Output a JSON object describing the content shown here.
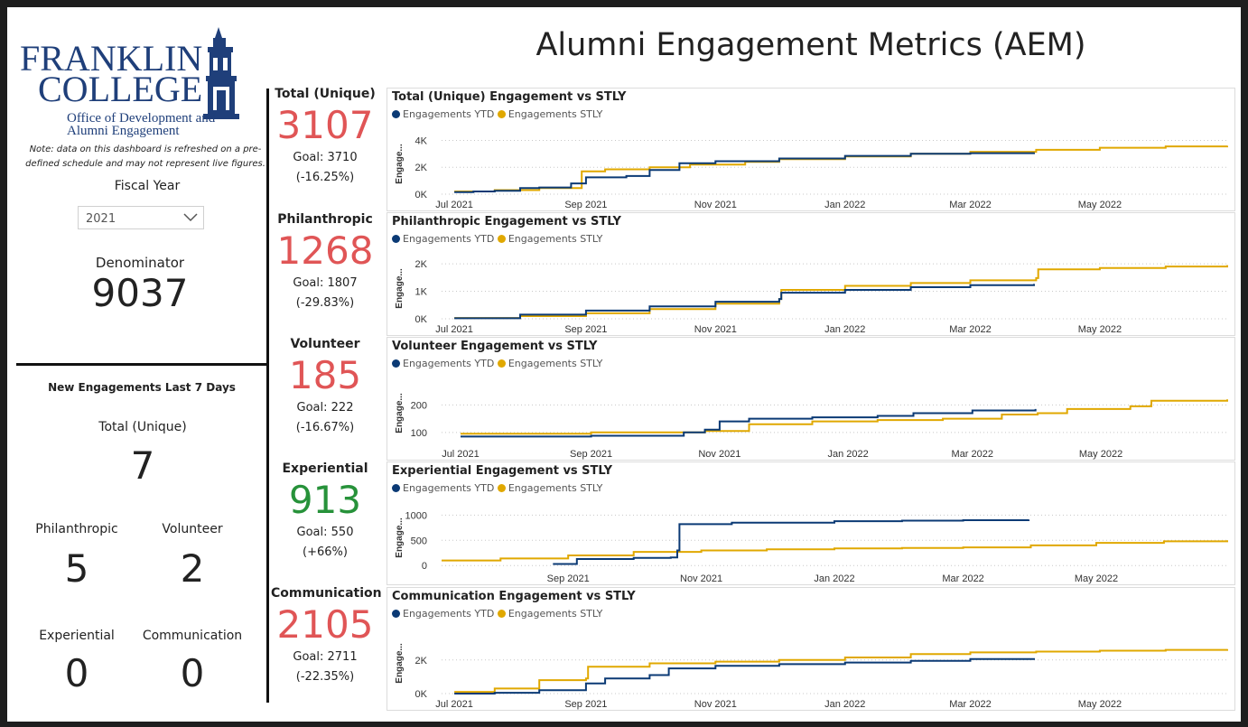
{
  "logo": {
    "line1": "FRANKLIN",
    "line2": "COLLEGE",
    "sub1": "Office of Development and",
    "sub2": "Alumni Engagement"
  },
  "note": "Note: data on this dashboard is refreshed on a pre-defined schedule and may not represent live figures.",
  "fiscal_year": {
    "label": "Fiscal Year",
    "value": "2021"
  },
  "denominator": {
    "label": "Denominator",
    "value": "9037"
  },
  "new_engagements": {
    "title": "New Engagements Last 7 Days",
    "total_label": "Total (Unique)",
    "total_value": "7",
    "philanthropic_label": "Philanthropic",
    "philanthropic_value": "5",
    "volunteer_label": "Volunteer",
    "volunteer_value": "2",
    "experiential_label": "Experiential",
    "experiential_value": "0",
    "communication_label": "Communication",
    "communication_value": "0"
  },
  "title": "Alumni Engagement Metrics (AEM)",
  "colors": {
    "ytd": "#0b3a75",
    "stly": "#e0a800",
    "below_goal": "#e05556",
    "above_goal": "#27923a"
  },
  "kpis": [
    {
      "label": "Total (Unique)",
      "value": "3107",
      "goal": "Goal: 3710",
      "delta": "(-16.25%)",
      "status": "below"
    },
    {
      "label": "Philanthropic",
      "value": "1268",
      "goal": "Goal: 1807",
      "delta": "(-29.83%)",
      "status": "below"
    },
    {
      "label": "Volunteer",
      "value": "185",
      "goal": "Goal: 222",
      "delta": "(-16.67%)",
      "status": "below"
    },
    {
      "label": "Experiential",
      "value": "913",
      "goal": "Goal: 550",
      "delta": "(+66%)",
      "status": "above"
    },
    {
      "label": "Communication",
      "value": "2105",
      "goal": "Goal: 2711",
      "delta": "(-22.35%)",
      "status": "below"
    }
  ],
  "chart_data": [
    {
      "type": "line",
      "title": "Total (Unique) Engagement vs STLY",
      "ylabel": "Engage...",
      "ylim": [
        0,
        4500
      ],
      "yticks": [
        0,
        2000,
        4000
      ],
      "ytick_labels": [
        "0K",
        "2K",
        "4K"
      ],
      "xlim": [
        "2021-06-25",
        "2022-06-30"
      ],
      "xticks": [
        "2021-07-01",
        "2021-09-01",
        "2021-11-01",
        "2022-01-01",
        "2022-03-01",
        "2022-05-01"
      ],
      "xtick_labels": [
        "Jul 2021",
        "Sep 2021",
        "Nov 2021",
        "Jan 2022",
        "Mar 2022",
        "May 2022"
      ],
      "grid": true,
      "legend": "top-left",
      "series": [
        {
          "name": "Engagements YTD",
          "color": "#0b3a75",
          "x": [
            "2021-07-01",
            "2021-07-10",
            "2021-07-20",
            "2021-08-01",
            "2021-08-10",
            "2021-08-25",
            "2021-09-01",
            "2021-09-20",
            "2021-10-01",
            "2021-10-15",
            "2021-11-01",
            "2021-12-01",
            "2022-01-01",
            "2022-02-01",
            "2022-03-01",
            "2022-03-31"
          ],
          "values": [
            150,
            200,
            250,
            450,
            500,
            800,
            1250,
            1350,
            1800,
            2300,
            2450,
            2650,
            2850,
            3000,
            3050,
            3107
          ]
        },
        {
          "name": "Engagements STLY",
          "color": "#e0a800",
          "x": [
            "2021-07-01",
            "2021-07-20",
            "2021-08-10",
            "2021-08-30",
            "2021-09-10",
            "2021-10-01",
            "2021-10-20",
            "2021-11-15",
            "2021-12-01",
            "2022-01-01",
            "2022-02-01",
            "2022-03-01",
            "2022-04-01",
            "2022-05-01",
            "2022-06-01",
            "2022-06-30"
          ],
          "values": [
            200,
            300,
            450,
            1700,
            1850,
            2000,
            2200,
            2400,
            2600,
            2800,
            3000,
            3150,
            3300,
            3450,
            3550,
            3600
          ]
        }
      ]
    },
    {
      "type": "line",
      "title": "Philanthropic Engagement vs STLY",
      "ylabel": "Engage...",
      "ylim": [
        0,
        2200
      ],
      "yticks": [
        0,
        1000,
        2000
      ],
      "ytick_labels": [
        "0K",
        "1K",
        "2K"
      ],
      "xlim": [
        "2021-06-25",
        "2022-06-30"
      ],
      "xticks": [
        "2021-07-01",
        "2021-09-01",
        "2021-11-01",
        "2022-01-01",
        "2022-03-01",
        "2022-05-01"
      ],
      "xtick_labels": [
        "Jul 2021",
        "Sep 2021",
        "Nov 2021",
        "Jan 2022",
        "Mar 2022",
        "May 2022"
      ],
      "grid": true,
      "legend": "top-left",
      "series": [
        {
          "name": "Engagements YTD",
          "color": "#0b3a75",
          "x": [
            "2021-07-01",
            "2021-08-01",
            "2021-09-01",
            "2021-10-01",
            "2021-11-01",
            "2021-12-01",
            "2021-12-02",
            "2022-01-01",
            "2022-02-01",
            "2022-03-01",
            "2022-03-31"
          ],
          "values": [
            20,
            150,
            300,
            450,
            620,
            720,
            950,
            1050,
            1150,
            1220,
            1268
          ]
        },
        {
          "name": "Engagements STLY",
          "color": "#e0a800",
          "x": [
            "2021-07-01",
            "2021-08-01",
            "2021-09-01",
            "2021-10-01",
            "2021-11-01",
            "2021-12-01",
            "2021-12-02",
            "2022-01-01",
            "2022-02-01",
            "2022-03-01",
            "2022-04-01",
            "2022-04-02",
            "2022-05-01",
            "2022-06-01",
            "2022-06-30"
          ],
          "values": [
            30,
            100,
            200,
            350,
            550,
            720,
            1050,
            1200,
            1300,
            1400,
            1480,
            1800,
            1850,
            1900,
            1950
          ]
        }
      ]
    },
    {
      "type": "line",
      "title": "Volunteer Engagement vs STLY",
      "ylabel": "Engage...",
      "ylim": [
        60,
        280
      ],
      "yticks": [
        100,
        200
      ],
      "ytick_labels": [
        "100",
        "200"
      ],
      "xlim": [
        "2021-06-22",
        "2022-06-30"
      ],
      "xticks": [
        "2021-07-01",
        "2021-09-01",
        "2021-11-01",
        "2022-01-01",
        "2022-03-01",
        "2022-05-01"
      ],
      "xtick_labels": [
        "Jul 2021",
        "Sep 2021",
        "Nov 2021",
        "Jan 2022",
        "Mar 2022",
        "May 2022"
      ],
      "grid": true,
      "legend": "top-left",
      "series": [
        {
          "name": "Engagements YTD",
          "color": "#0b3a75",
          "x": [
            "2021-07-01",
            "2021-09-01",
            "2021-10-15",
            "2021-10-25",
            "2021-11-01",
            "2021-11-15",
            "2021-12-15",
            "2022-01-15",
            "2022-02-01",
            "2022-03-01",
            "2022-03-31"
          ],
          "values": [
            85,
            88,
            100,
            110,
            140,
            150,
            155,
            160,
            170,
            180,
            185
          ]
        },
        {
          "name": "Engagements STLY",
          "color": "#e0a800",
          "x": [
            "2021-07-01",
            "2021-09-01",
            "2021-10-25",
            "2021-11-15",
            "2021-12-15",
            "2022-01-15",
            "2022-02-15",
            "2022-03-15",
            "2022-04-01",
            "2022-04-15",
            "2022-05-15",
            "2022-05-25",
            "2022-06-30"
          ],
          "values": [
            95,
            100,
            105,
            130,
            140,
            145,
            150,
            165,
            170,
            185,
            195,
            215,
            220
          ]
        }
      ]
    },
    {
      "type": "line",
      "title": "Experiential Engagement vs STLY",
      "ylabel": "Engage...",
      "ylim": [
        -50,
        1150
      ],
      "yticks": [
        0,
        500,
        1000
      ],
      "ytick_labels": [
        "0",
        "500",
        "1000"
      ],
      "xlim": [
        "2021-07-05",
        "2022-06-30"
      ],
      "xticks": [
        "2021-09-01",
        "2021-11-01",
        "2022-01-01",
        "2022-03-01",
        "2022-05-01"
      ],
      "xtick_labels": [
        "Sep 2021",
        "Nov 2021",
        "Jan 2022",
        "Mar 2022",
        "May 2022"
      ],
      "grid": true,
      "legend": "top-left",
      "series": [
        {
          "name": "Engagements YTD",
          "color": "#0b3a75",
          "x": [
            "2021-08-25",
            "2021-09-01",
            "2021-09-05",
            "2021-10-01",
            "2021-10-18",
            "2021-10-21",
            "2021-10-22",
            "2021-11-15",
            "2022-01-01",
            "2022-02-01",
            "2022-03-01",
            "2022-03-31"
          ],
          "values": [
            30,
            30,
            130,
            150,
            160,
            300,
            820,
            850,
            880,
            890,
            900,
            913
          ]
        },
        {
          "name": "Engagements STLY",
          "color": "#e0a800",
          "x": [
            "2021-07-05",
            "2021-08-01",
            "2021-09-01",
            "2021-10-01",
            "2021-11-01",
            "2021-12-01",
            "2022-01-01",
            "2022-02-01",
            "2022-03-01",
            "2022-04-01",
            "2022-05-01",
            "2022-06-01",
            "2022-06-30"
          ],
          "values": [
            100,
            140,
            200,
            270,
            300,
            320,
            340,
            350,
            360,
            400,
            450,
            480,
            500
          ]
        }
      ]
    },
    {
      "type": "line",
      "title": "Communication Engagement vs STLY",
      "ylabel": "Engage...",
      "ylim": [
        0,
        3600
      ],
      "yticks": [
        0,
        2000
      ],
      "ytick_labels": [
        "0K",
        "2K"
      ],
      "xlim": [
        "2021-06-25",
        "2022-06-30"
      ],
      "xticks": [
        "2021-07-01",
        "2021-09-01",
        "2021-11-01",
        "2022-01-01",
        "2022-03-01",
        "2022-05-01"
      ],
      "xtick_labels": [
        "Jul 2021",
        "Sep 2021",
        "Nov 2021",
        "Jan 2022",
        "Mar 2022",
        "May 2022"
      ],
      "grid": true,
      "legend": "top-left",
      "series": [
        {
          "name": "Engagements YTD",
          "color": "#0b3a75",
          "x": [
            "2021-07-01",
            "2021-07-20",
            "2021-08-10",
            "2021-09-01",
            "2021-09-10",
            "2021-10-01",
            "2021-10-10",
            "2021-11-01",
            "2021-12-01",
            "2022-01-01",
            "2022-02-01",
            "2022-03-01",
            "2022-03-31"
          ],
          "values": [
            0,
            50,
            200,
            600,
            900,
            1100,
            1500,
            1650,
            1750,
            1850,
            1950,
            2050,
            2105
          ]
        },
        {
          "name": "Engagements STLY",
          "color": "#e0a800",
          "x": [
            "2021-07-01",
            "2021-07-20",
            "2021-08-10",
            "2021-09-01",
            "2021-09-02",
            "2021-10-01",
            "2021-11-01",
            "2021-12-01",
            "2022-01-01",
            "2022-02-01",
            "2022-03-01",
            "2022-04-01",
            "2022-05-01",
            "2022-06-01",
            "2022-06-30"
          ],
          "values": [
            100,
            300,
            800,
            900,
            1600,
            1800,
            1900,
            2000,
            2150,
            2350,
            2450,
            2500,
            2550,
            2600,
            2650
          ]
        }
      ]
    }
  ]
}
